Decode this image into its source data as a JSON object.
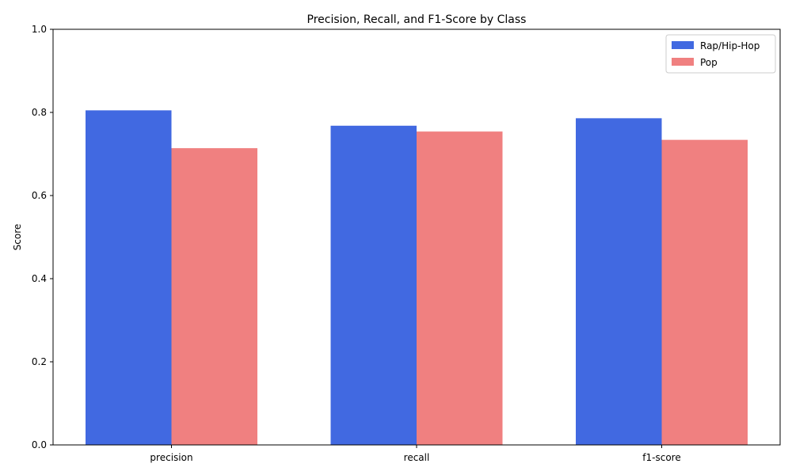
{
  "chart_data": {
    "type": "bar",
    "title": "Precision, Recall, and F1-Score by Class",
    "xlabel": "",
    "ylabel": "Score",
    "categories": [
      "precision",
      "recall",
      "f1-score"
    ],
    "series": [
      {
        "name": "Rap/Hip-Hop",
        "color": "#4169e1",
        "values": [
          0.805,
          0.768,
          0.786
        ]
      },
      {
        "name": "Pop",
        "color": "#f08080",
        "values": [
          0.714,
          0.754,
          0.734
        ]
      }
    ],
    "ylim": [
      0,
      1.0
    ],
    "yticks": [
      "0.0",
      "0.2",
      "0.4",
      "0.6",
      "0.8",
      "1.0"
    ],
    "grid": false,
    "legend_position": "top-right"
  }
}
